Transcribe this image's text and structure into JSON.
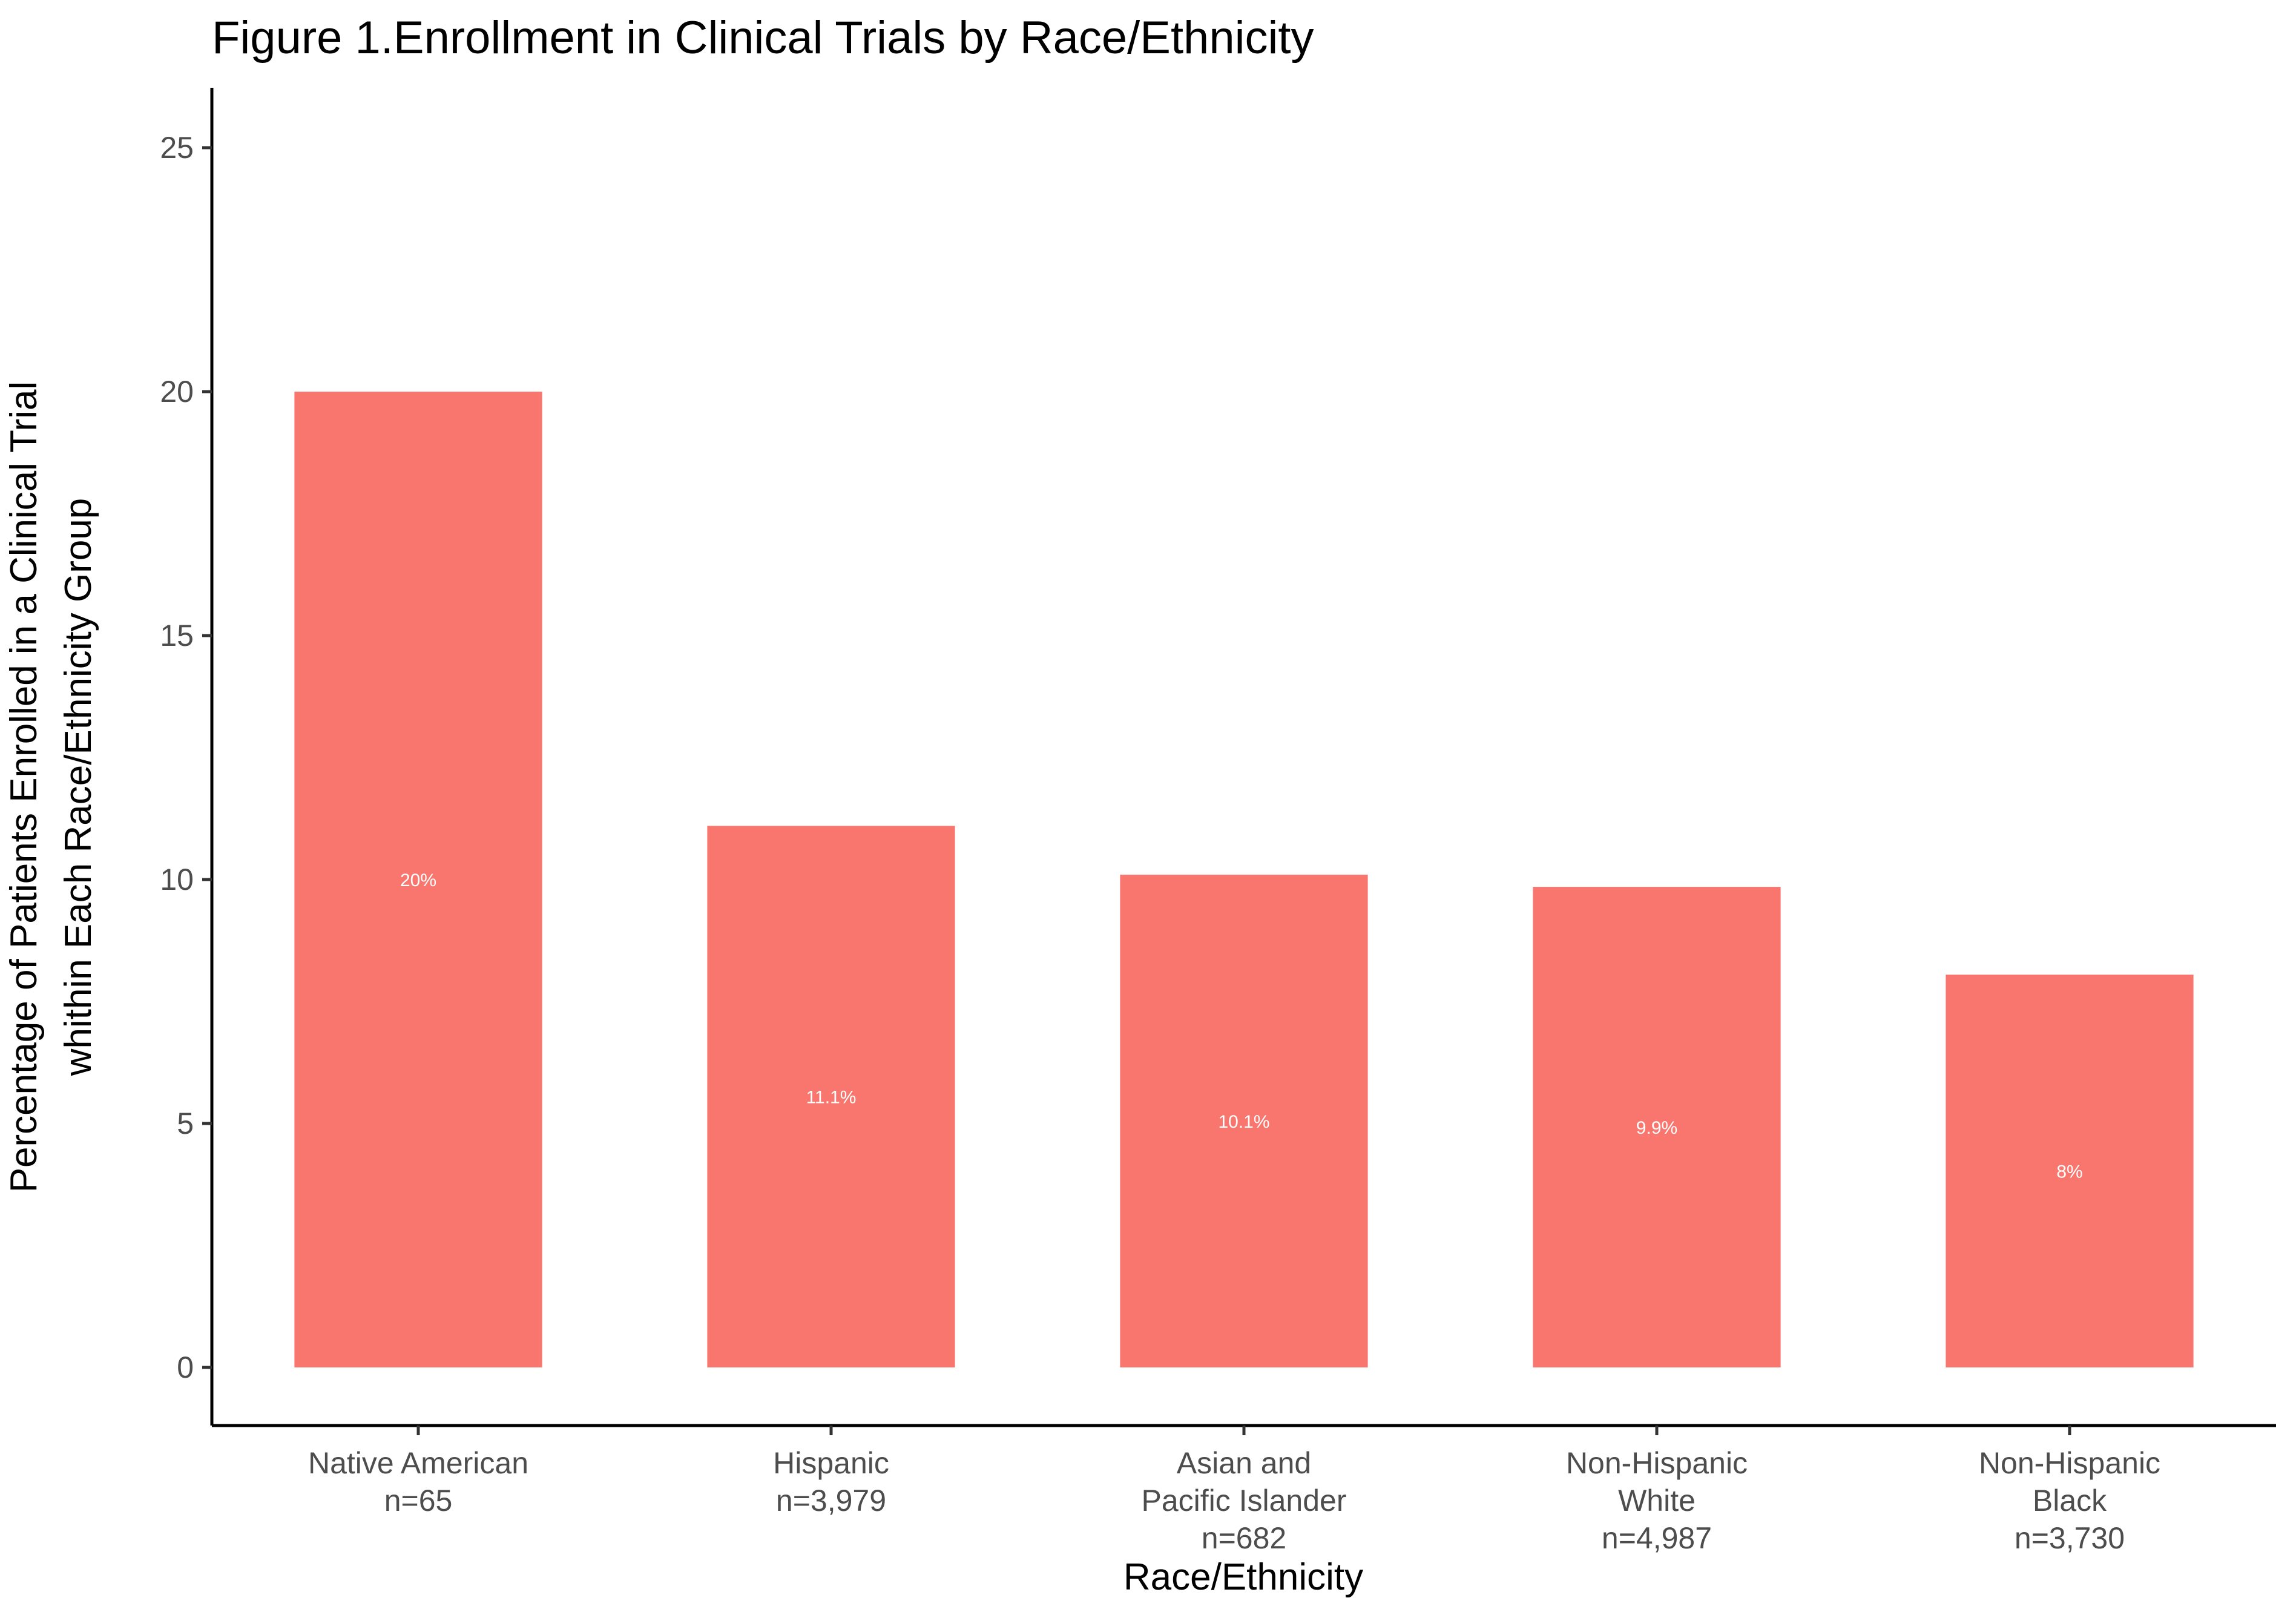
{
  "chart_data": {
    "type": "bar",
    "title": "Figure 1.Enrollment in Clinical Trials by Race/Ethnicity",
    "xlabel": "Race/Ethnicity",
    "ylabel": [
      "Percentage of Patients Enrolled in a Clinical Trial",
      "whithin Each Race/Ethnicity Group"
    ],
    "ylim": [
      -2.4,
      26.2
    ],
    "yticks": [
      0,
      5,
      10,
      15,
      20,
      25
    ],
    "grid": false,
    "legend": "none",
    "bar_color": "#F8766D",
    "categories": [
      [
        "Native American",
        "n=65"
      ],
      [
        "Hispanic",
        "n=3,979"
      ],
      [
        "Asian and",
        "Pacific Islander",
        "n=682"
      ],
      [
        "Non-Hispanic",
        "White",
        "n=4,987"
      ],
      [
        "Non-Hispanic",
        "Black",
        "n=3,730"
      ]
    ],
    "values": [
      20,
      11.1,
      10.1,
      9.85,
      8.05
    ],
    "data_labels": [
      "20%",
      "11.1%",
      "10.1%",
      "9.9%",
      "8%"
    ]
  }
}
